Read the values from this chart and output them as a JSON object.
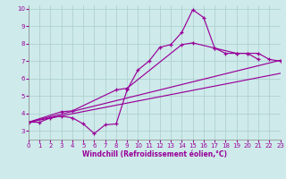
{
  "xlabel": "Windchill (Refroidissement éolien,°C)",
  "xlim": [
    0,
    23
  ],
  "ylim": [
    2.5,
    10.2
  ],
  "xticks": [
    0,
    1,
    2,
    3,
    4,
    5,
    6,
    7,
    8,
    9,
    10,
    11,
    12,
    13,
    14,
    15,
    16,
    17,
    18,
    19,
    20,
    21,
    22,
    23
  ],
  "yticks": [
    3,
    4,
    5,
    6,
    7,
    8,
    9,
    10
  ],
  "bg_color": "#ceeaea",
  "grid_color": "#aacccc",
  "line_color": "#990099",
  "line1_x": [
    0,
    1,
    2,
    3,
    4,
    5,
    6,
    7,
    8,
    9,
    10,
    11,
    12,
    13,
    14,
    15,
    16,
    17,
    18,
    19,
    20,
    21
  ],
  "line1_y": [
    3.5,
    3.5,
    3.75,
    3.85,
    3.75,
    3.4,
    2.85,
    3.35,
    3.4,
    5.35,
    6.5,
    7.0,
    7.8,
    7.95,
    8.65,
    9.95,
    9.5,
    7.75,
    7.45,
    7.45,
    7.45,
    7.1
  ],
  "line2_x": [
    0,
    23
  ],
  "line2_y": [
    3.5,
    7.05
  ],
  "line3_x": [
    0,
    23
  ],
  "line3_y": [
    3.5,
    6.3
  ],
  "line4_x": [
    0,
    3,
    4,
    8,
    9,
    14,
    15,
    17,
    19,
    20,
    21,
    22,
    23
  ],
  "line4_y": [
    3.5,
    4.1,
    4.15,
    5.35,
    5.45,
    7.95,
    8.05,
    7.75,
    7.45,
    7.45,
    7.45,
    7.1,
    7.0
  ],
  "marker": "+"
}
